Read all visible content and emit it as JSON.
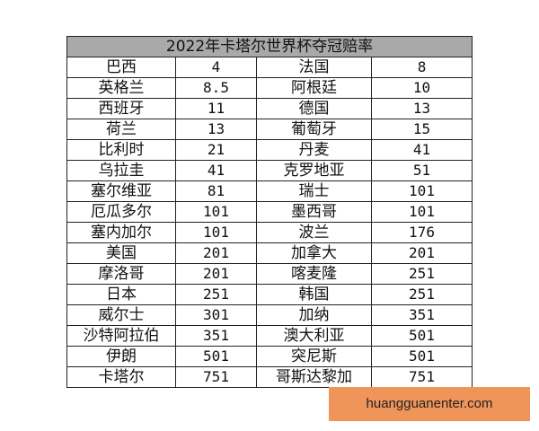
{
  "title": "2022年卡塔尔世界杯夺冠赔率",
  "rows": [
    [
      "巴西",
      "4",
      "法国",
      "8"
    ],
    [
      "英格兰",
      "8.5",
      "阿根廷",
      "10"
    ],
    [
      "西班牙",
      "11",
      "德国",
      "13"
    ],
    [
      "荷兰",
      "13",
      "葡萄牙",
      "15"
    ],
    [
      "比利时",
      "21",
      "丹麦",
      "41"
    ],
    [
      "乌拉圭",
      "41",
      "克罗地亚",
      "51"
    ],
    [
      "塞尔维亚",
      "81",
      "瑞士",
      "101"
    ],
    [
      "厄瓜多尔",
      "101",
      "墨西哥",
      "101"
    ],
    [
      "塞内加尔",
      "101",
      "波兰",
      "176"
    ],
    [
      "美国",
      "201",
      "加拿大",
      "201"
    ],
    [
      "摩洛哥",
      "201",
      "喀麦隆",
      "251"
    ],
    [
      "日本",
      "251",
      "韩国",
      "251"
    ],
    [
      "威尔士",
      "301",
      "加纳",
      "351"
    ],
    [
      "沙特阿拉伯",
      "351",
      "澳大利亚",
      "501"
    ],
    [
      "伊朗",
      "501",
      "突尼斯",
      "501"
    ],
    [
      "卡塔尔",
      "751",
      "哥斯达黎加",
      "751"
    ]
  ],
  "watermark": "huangguanenter.com",
  "colors": {
    "header_bg": "#a9a9a9",
    "watermark_bg": "#f0955a"
  }
}
